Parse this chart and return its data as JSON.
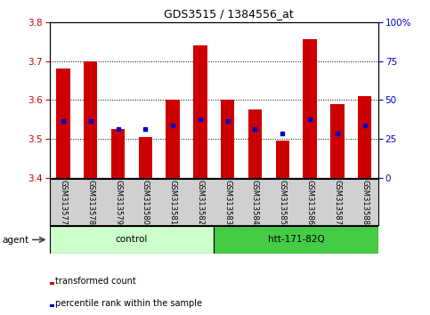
{
  "title": "GDS3515 / 1384556_at",
  "samples": [
    "GSM313577",
    "GSM313578",
    "GSM313579",
    "GSM313580",
    "GSM313581",
    "GSM313582",
    "GSM313583",
    "GSM313584",
    "GSM313585",
    "GSM313586",
    "GSM313587",
    "GSM313588"
  ],
  "transformed_counts": [
    3.68,
    3.7,
    3.525,
    3.505,
    3.6,
    3.74,
    3.6,
    3.575,
    3.495,
    3.755,
    3.59,
    3.61
  ],
  "percentile_ranks": [
    3.545,
    3.545,
    3.525,
    3.525,
    3.535,
    3.55,
    3.545,
    3.525,
    3.515,
    3.55,
    3.515,
    3.535
  ],
  "ymin": 3.4,
  "ymax": 3.8,
  "bar_color": "#cc0000",
  "dot_color": "#0000cc",
  "groups": [
    {
      "label": "control",
      "start": 0,
      "end": 6,
      "color": "#ccffcc"
    },
    {
      "label": "htt-171-82Q",
      "start": 6,
      "end": 12,
      "color": "#44cc44"
    }
  ],
  "agent_label": "agent",
  "right_axis_ticks": [
    0,
    25,
    50,
    75,
    100
  ],
  "right_axis_color": "#0000cc",
  "left_axis_color": "#cc0000",
  "bg_color": "#ffffff",
  "plot_bg_color": "#ffffff",
  "grid_color": "#000000",
  "tick_label_area_color": "#d0d0d0",
  "legend_items": [
    {
      "color": "#cc0000",
      "label": "transformed count"
    },
    {
      "color": "#0000cc",
      "label": "percentile rank within the sample"
    }
  ]
}
